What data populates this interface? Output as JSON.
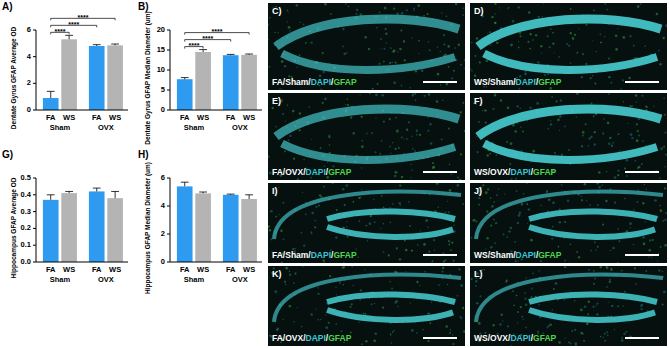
{
  "chart_data": [
    {
      "type": "bar",
      "title": "A)",
      "y_label": "Dentate Gyrus GFAP Average OD",
      "categories": [
        "FA",
        "WS",
        "FA",
        "WS"
      ],
      "groups": [
        "Sham",
        "OVX"
      ],
      "values": [
        0.9,
        5.3,
        4.8,
        4.85
      ],
      "errors": [
        0.5,
        0.3,
        0.1,
        0.1
      ],
      "colors": [
        "#2e9bf0",
        "#b4b4b4",
        "#2e9bf0",
        "#b4b4b4"
      ],
      "ylim": [
        0,
        6
      ],
      "yticks": [
        0,
        2,
        4,
        6
      ],
      "annotations": [
        {
          "from": 0,
          "to": 1,
          "label": "****"
        },
        {
          "from": 0,
          "to": 2,
          "label": "****"
        },
        {
          "from": 0,
          "to": 3,
          "label": "****"
        }
      ]
    },
    {
      "type": "bar",
      "title": "B)",
      "y_label": "Dentate Gyrus GFAP Median Diameter (um)",
      "categories": [
        "FA",
        "WS",
        "FA",
        "WS"
      ],
      "groups": [
        "Sham",
        "OVX"
      ],
      "values": [
        7.7,
        14.5,
        13.7,
        13.8
      ],
      "errors": [
        0.4,
        0.6,
        0.2,
        0.2
      ],
      "colors": [
        "#2e9bf0",
        "#b4b4b4",
        "#2e9bf0",
        "#b4b4b4"
      ],
      "ylim": [
        0,
        20
      ],
      "yticks": [
        0,
        5,
        10,
        15,
        20
      ],
      "annotations": [
        {
          "from": 0,
          "to": 1,
          "label": "****"
        },
        {
          "from": 0,
          "to": 2,
          "label": "****"
        },
        {
          "from": 0,
          "to": 3,
          "label": "****"
        }
      ]
    },
    {
      "type": "bar",
      "title": "G)",
      "y_label": "Hippocampus GFAP Average OD",
      "categories": [
        "FA",
        "WS",
        "FA",
        "WS"
      ],
      "groups": [
        "Sham",
        "OVX"
      ],
      "values": [
        0.37,
        0.41,
        0.42,
        0.38
      ],
      "errors": [
        0.03,
        0.01,
        0.02,
        0.04
      ],
      "colors": [
        "#2e9bf0",
        "#b4b4b4",
        "#2e9bf0",
        "#b4b4b4"
      ],
      "ylim": [
        0,
        0.5
      ],
      "yticks": [
        {
          "value": 0,
          "label": "0.0"
        },
        0.1,
        0.2,
        0.3,
        0.4,
        0.5
      ]
    },
    {
      "type": "bar",
      "title": "H)",
      "y_label": "Hippocampus GFAP Median Diameter (um)",
      "categories": [
        "FA",
        "WS",
        "FA",
        "WS"
      ],
      "groups": [
        "Sham",
        "OVX"
      ],
      "values": [
        5.4,
        4.9,
        4.8,
        4.5
      ],
      "errors": [
        0.3,
        0.1,
        0.05,
        0.3
      ],
      "colors": [
        "#2e9bf0",
        "#b4b4b4",
        "#2e9bf0",
        "#b4b4b4"
      ],
      "ylim": [
        0,
        6
      ],
      "yticks": [
        0,
        2,
        4,
        6
      ]
    }
  ],
  "panels": [
    {
      "letter": "C)",
      "caption": [
        "FA/Sham/",
        "DAPI",
        "/",
        "GFAP"
      ]
    },
    {
      "letter": "D)",
      "caption": [
        "WS/Sham/",
        "DAPI",
        "/",
        "GFAP"
      ]
    },
    {
      "letter": "E)",
      "caption": [
        "FA/OVX/",
        "DAPI",
        "/",
        "GFAP"
      ]
    },
    {
      "letter": "F)",
      "caption": [
        "WS/OVX/",
        "DAPI",
        "/",
        "GFAP"
      ]
    },
    {
      "letter": "I)",
      "caption": [
        "FA/Sham/",
        "DAPI",
        "/",
        "GFAP"
      ]
    },
    {
      "letter": "J)",
      "caption": [
        "WS/Sham/",
        "DAPI",
        "/",
        "GFAP"
      ]
    },
    {
      "letter": "K)",
      "caption": [
        "FA/OVX/",
        "DAPI",
        "/",
        "GFAP"
      ]
    },
    {
      "letter": "L)",
      "caption": [
        "WS/OVX/",
        "DAPI",
        "/",
        "GFAP"
      ]
    }
  ]
}
